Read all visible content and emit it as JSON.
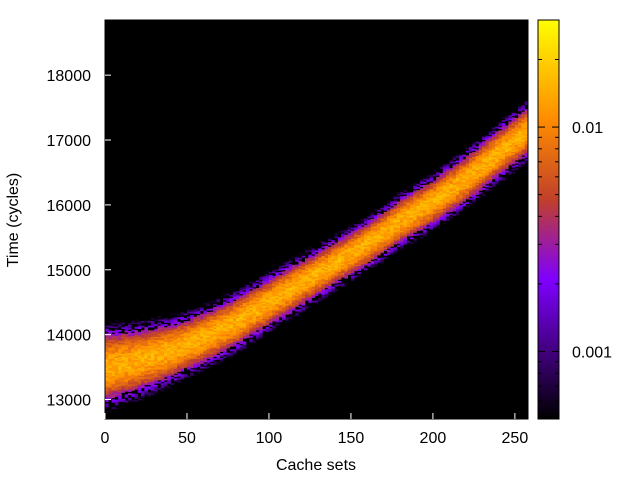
{
  "chart_data": {
    "type": "heatmap",
    "xlabel": "Cache sets",
    "ylabel": "Time (cycles)",
    "xlim": [
      0,
      258
    ],
    "ylim": [
      12700,
      18850
    ],
    "x_ticks": [
      0,
      50,
      100,
      150,
      200,
      250
    ],
    "y_ticks": [
      13000,
      14000,
      15000,
      16000,
      17000,
      18000
    ],
    "colorbar": {
      "scale": "log",
      "range": [
        0.0005,
        0.03
      ],
      "ticks": [
        0.001,
        0.01
      ],
      "tick_labels": [
        "0.001",
        "0.01"
      ],
      "palette": [
        "#000000",
        "#3a0070",
        "#7f00ff",
        "#c0402a",
        "#ff8c00",
        "#ffd000",
        "#ffff00"
      ]
    },
    "band_center": [
      [
        0,
        13500
      ],
      [
        20,
        13600
      ],
      [
        40,
        13750
      ],
      [
        60,
        13950
      ],
      [
        80,
        14200
      ],
      [
        100,
        14500
      ],
      [
        120,
        14800
      ],
      [
        140,
        15100
      ],
      [
        160,
        15400
      ],
      [
        180,
        15750
      ],
      [
        200,
        16050
      ],
      [
        220,
        16400
      ],
      [
        240,
        16800
      ],
      [
        258,
        17150
      ]
    ],
    "band_halfwidth_cycles": [
      [
        0,
        400
      ],
      [
        50,
        300
      ],
      [
        150,
        250
      ],
      [
        258,
        280
      ]
    ],
    "peak_probability": 0.015,
    "background": "#000000"
  }
}
